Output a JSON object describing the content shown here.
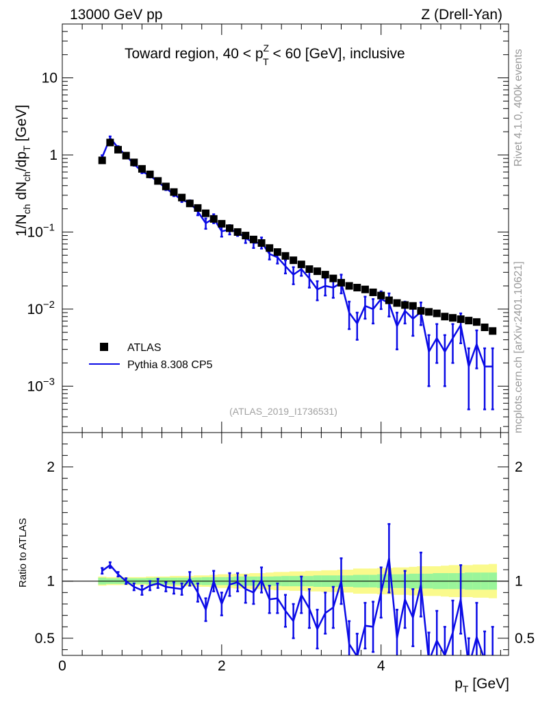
{
  "header": {
    "left": "13000 GeV pp",
    "right": "Z (Drell-Yan)"
  },
  "side_text": {
    "top": "Rivet 4.1.0,  400k events",
    "bottom": "mcplots.cern.ch [arXiv:2401.10621]"
  },
  "colors": {
    "data": "#000000",
    "mc": "#0a0ae6",
    "band_inner": "#9af59a",
    "band_outer": "#fafa8c"
  },
  "chart_data": [
    {
      "type": "scatter",
      "title": "Toward region, 40 < pTZ < 60 [GeV], inclusive",
      "title_parts": {
        "before": "Toward region, 40 < p",
        "sup": "Z",
        "sub": "T",
        "after": " < 60 [GeV], inclusive"
      },
      "ylabel": "1/Nch dNch/dpT [GeV]",
      "ylabel_parts": {
        "a": "1/N",
        "a_sub": "ch",
        "b": " dN",
        "b_sub": "ch",
        "c": "/dp",
        "c_sub": "T",
        "d": " [GeV]"
      },
      "yscale": "log",
      "ylim": [
        0.00025,
        50
      ],
      "xlim": [
        0,
        5.6
      ],
      "yticks": [
        {
          "v": 10,
          "base": "10",
          "exp": ""
        },
        {
          "v": 1,
          "base": "1",
          "exp": ""
        },
        {
          "v": 0.1,
          "base": "10",
          "exp": "−1"
        },
        {
          "v": 0.01,
          "base": "10",
          "exp": "−2"
        },
        {
          "v": 0.001,
          "base": "10",
          "exp": "−3"
        }
      ],
      "watermark": "(ATLAS_2019_I1736531)",
      "legend": {
        "position": "bottom-left",
        "entries": [
          "ATLAS",
          "Pythia 8.308 CP5"
        ]
      },
      "x": [
        0.5,
        0.6,
        0.7,
        0.8,
        0.9,
        1.0,
        1.1,
        1.2,
        1.3,
        1.4,
        1.5,
        1.6,
        1.7,
        1.8,
        1.9,
        2.0,
        2.1,
        2.2,
        2.3,
        2.4,
        2.5,
        2.6,
        2.7,
        2.8,
        2.9,
        3.0,
        3.1,
        3.2,
        3.3,
        3.4,
        3.5,
        3.6,
        3.7,
        3.8,
        3.9,
        4.0,
        4.1,
        4.2,
        4.3,
        4.4,
        4.5,
        4.6,
        4.7,
        4.8,
        4.9,
        5.0,
        5.1,
        5.2,
        5.3,
        5.4
      ],
      "series": [
        {
          "name": "ATLAS",
          "marker": "square",
          "values": [
            0.85,
            1.45,
            1.17,
            0.98,
            0.8,
            0.66,
            0.56,
            0.46,
            0.39,
            0.33,
            0.28,
            0.235,
            0.205,
            0.175,
            0.148,
            0.128,
            0.112,
            0.1,
            0.09,
            0.08,
            0.072,
            0.062,
            0.055,
            0.049,
            0.043,
            0.038,
            0.033,
            0.031,
            0.028,
            0.025,
            0.022,
            0.02,
            0.019,
            0.018,
            0.0165,
            0.015,
            0.013,
            0.012,
            0.0113,
            0.011,
            0.0095,
            0.0092,
            0.0088,
            0.008,
            0.0077,
            0.0074,
            0.0071,
            0.0068,
            0.0058,
            0.0052
          ]
        },
        {
          "name": "Pythia 8.308 CP5",
          "marker": "line",
          "values": [
            0.93,
            1.66,
            1.24,
            0.98,
            0.76,
            0.61,
            0.54,
            0.45,
            0.37,
            0.31,
            0.26,
            0.24,
            0.185,
            0.13,
            0.15,
            0.102,
            0.108,
            0.099,
            0.084,
            0.072,
            0.073,
            0.052,
            0.047,
            0.036,
            0.028,
            0.033,
            0.025,
            0.018,
            0.02,
            0.019,
            0.022,
            0.009,
            0.0065,
            0.011,
            0.01,
            0.0135,
            0.012,
            0.006,
            0.0095,
            0.0075,
            0.0092,
            0.0028,
            0.0042,
            0.0028,
            0.0042,
            0.0062,
            0.0018,
            0.0035,
            0.0018,
            0.0018
          ],
          "errors": [
            0.06,
            0.08,
            0.06,
            0.04,
            0.035,
            0.03,
            0.03,
            0.02,
            0.02,
            0.018,
            0.015,
            0.018,
            0.02,
            0.02,
            0.02,
            0.015,
            0.015,
            0.01,
            0.012,
            0.01,
            0.012,
            0.008,
            0.008,
            0.007,
            0.007,
            0.006,
            0.006,
            0.005,
            0.005,
            0.005,
            0.006,
            0.0035,
            0.0025,
            0.0035,
            0.0035,
            0.0035,
            0.004,
            0.003,
            0.003,
            0.003,
            0.003,
            0.0018,
            0.0022,
            0.0018,
            0.0022,
            0.0026,
            0.0013,
            0.0018,
            0.0013,
            0.0013
          ]
        }
      ]
    },
    {
      "type": "line",
      "ylabel": "Ratio to ATLAS",
      "xlabel": "pT [GeV]",
      "xlabel_parts": {
        "main": "p",
        "sub": "T",
        "after": " [GeV]"
      },
      "xlim": [
        0,
        5.6
      ],
      "ylim": [
        0.35,
        2.3
      ],
      "xticks": [
        0,
        2,
        4
      ],
      "yticks": [
        0.5,
        1,
        2
      ],
      "series": [
        {
          "name": "Pythia 8.308 CP5 / ATLAS",
          "values": [
            1.09,
            1.14,
            1.06,
            1.0,
            0.95,
            0.92,
            0.96,
            0.98,
            0.95,
            0.94,
            0.93,
            1.02,
            0.9,
            0.75,
            1.0,
            0.8,
            0.97,
            0.99,
            0.93,
            0.9,
            1.01,
            0.84,
            0.85,
            0.74,
            0.65,
            0.88,
            0.76,
            0.58,
            0.72,
            0.77,
            1.0,
            0.45,
            0.34,
            0.61,
            0.6,
            0.9,
            1.2,
            0.5,
            0.84,
            0.68,
            0.97,
            0.3,
            0.48,
            0.35,
            0.55,
            0.84,
            0.25,
            0.51,
            0.31,
            0.35
          ],
          "errors": [
            0.025,
            0.025,
            0.02,
            0.025,
            0.03,
            0.04,
            0.04,
            0.04,
            0.04,
            0.05,
            0.05,
            0.06,
            0.08,
            0.1,
            0.09,
            0.1,
            0.1,
            0.08,
            0.12,
            0.1,
            0.11,
            0.12,
            0.13,
            0.14,
            0.15,
            0.16,
            0.17,
            0.17,
            0.18,
            0.18,
            0.2,
            0.2,
            0.2,
            0.2,
            0.22,
            0.22,
            0.3,
            0.25,
            0.25,
            0.25,
            0.28,
            0.25,
            0.26,
            0.25,
            0.28,
            0.3,
            0.25,
            0.3,
            0.25,
            0.25
          ]
        }
      ],
      "band_inner_halfwidth": [
        0.03,
        0.025,
        0.025,
        0.025,
        0.025,
        0.025,
        0.028,
        0.03,
        0.03,
        0.03,
        0.03,
        0.03,
        0.032,
        0.035,
        0.035,
        0.035,
        0.035,
        0.04,
        0.04,
        0.04,
        0.04,
        0.04,
        0.042,
        0.045,
        0.045,
        0.045,
        0.045,
        0.05,
        0.05,
        0.05,
        0.05,
        0.05,
        0.055,
        0.055,
        0.055,
        0.06,
        0.06,
        0.06,
        0.06,
        0.065,
        0.065,
        0.065,
        0.07,
        0.07,
        0.07,
        0.07,
        0.075,
        0.075,
        0.075,
        0.075
      ],
      "band_outer_halfwidth": [
        0.04,
        0.035,
        0.035,
        0.035,
        0.035,
        0.035,
        0.04,
        0.04,
        0.04,
        0.045,
        0.045,
        0.045,
        0.05,
        0.05,
        0.055,
        0.06,
        0.06,
        0.065,
        0.065,
        0.07,
        0.07,
        0.075,
        0.08,
        0.08,
        0.085,
        0.085,
        0.09,
        0.09,
        0.095,
        0.095,
        0.1,
        0.1,
        0.11,
        0.11,
        0.11,
        0.115,
        0.115,
        0.12,
        0.12,
        0.125,
        0.13,
        0.13,
        0.13,
        0.135,
        0.14,
        0.14,
        0.14,
        0.145,
        0.145,
        0.15
      ]
    }
  ]
}
